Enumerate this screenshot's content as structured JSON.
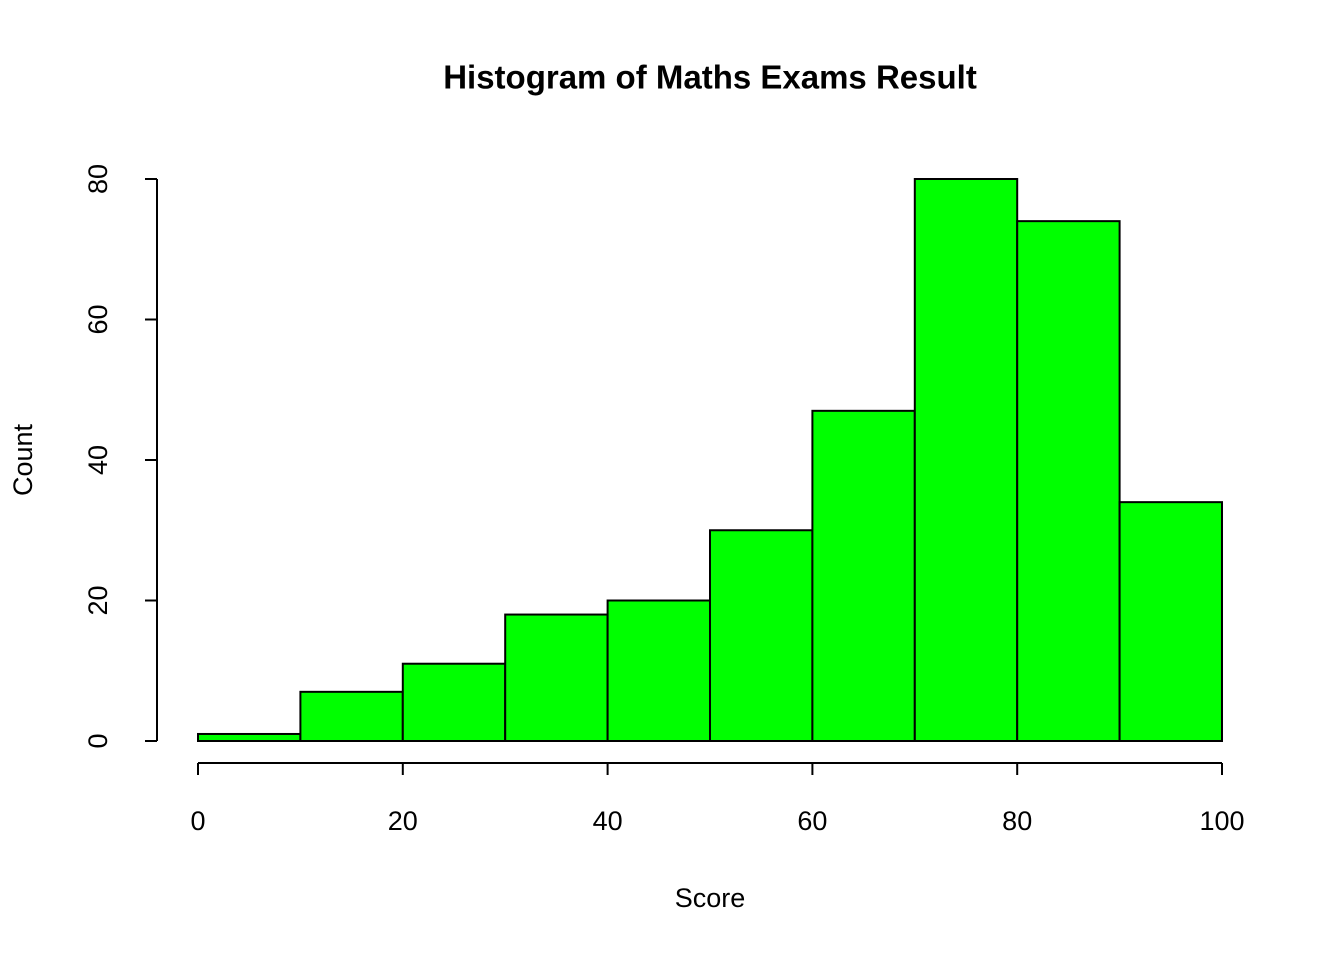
{
  "chart_data": {
    "type": "histogram",
    "title": "Histogram of Maths Exams Result",
    "x_label": "Score",
    "y_label": "Count",
    "bins": [
      0,
      10,
      20,
      30,
      40,
      50,
      60,
      70,
      80,
      90,
      100
    ],
    "values": [
      1,
      7,
      11,
      18,
      20,
      30,
      47,
      80,
      74,
      34
    ],
    "color": "#00ff00",
    "xlim": [
      0,
      100
    ],
    "xticks": [
      0,
      20,
      40,
      60,
      80,
      100
    ],
    "ylim": [
      0,
      80
    ],
    "yticks": [
      0,
      20,
      40,
      60,
      80
    ]
  }
}
